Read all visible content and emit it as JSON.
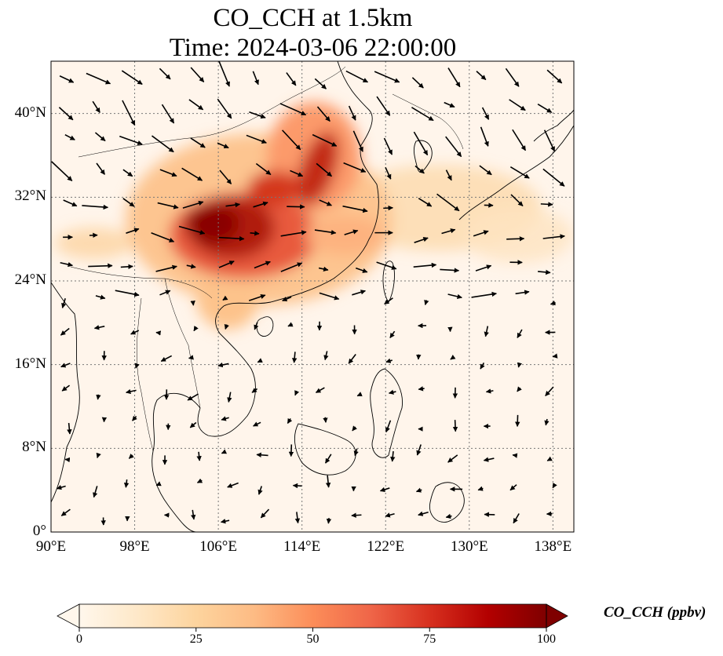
{
  "title": {
    "line1": "CO_CCH at 1.5km",
    "line2": "Time: 2024-03-06 22:00:00"
  },
  "map": {
    "extent": {
      "lon_min": 90,
      "lon_max": 140,
      "lat_min": 0,
      "lat_max": 45
    },
    "lat_ticks": [
      {
        "value": 0,
        "label": "0°"
      },
      {
        "value": 8,
        "label": "8°N"
      },
      {
        "value": 16,
        "label": "16°N"
      },
      {
        "value": 24,
        "label": "24°N"
      },
      {
        "value": 32,
        "label": "32°N"
      },
      {
        "value": 40,
        "label": "40°N"
      }
    ],
    "lon_ticks": [
      {
        "value": 90,
        "label": "90°E"
      },
      {
        "value": 98,
        "label": "98°E"
      },
      {
        "value": 106,
        "label": "106°E"
      },
      {
        "value": 114,
        "label": "114°E"
      },
      {
        "value": 122,
        "label": "122°E"
      },
      {
        "value": 130,
        "label": "130°E"
      },
      {
        "value": 138,
        "label": "138°E"
      }
    ],
    "gridlines": true,
    "background_color": "#fff5eb",
    "colormap": "OrRd",
    "coastline_color": "#000000",
    "wind_vectors": true
  },
  "colorbar": {
    "label": "CO_CCH (ppbv)",
    "min": 0,
    "max": 100,
    "extend": "both",
    "ticks": [
      {
        "value": 0,
        "label": "0"
      },
      {
        "value": 25,
        "label": "25"
      },
      {
        "value": 50,
        "label": "50"
      },
      {
        "value": 75,
        "label": "75"
      },
      {
        "value": 100,
        "label": "100"
      }
    ],
    "colors": [
      "#fff7ec",
      "#fee8c8",
      "#fdd49e",
      "#fdbb84",
      "#fc8d59",
      "#ef6548",
      "#d7301f",
      "#b30000",
      "#7f0000"
    ]
  }
}
